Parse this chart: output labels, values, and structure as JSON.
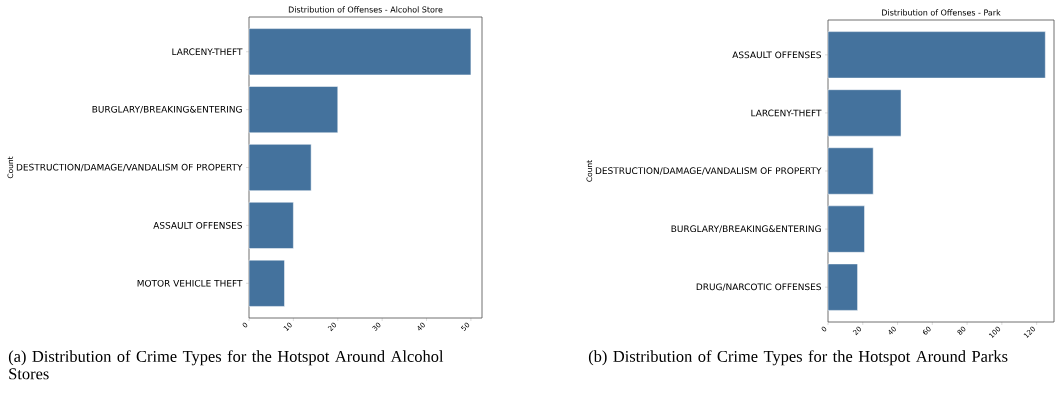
{
  "chart_data": [
    {
      "type": "bar",
      "orientation": "horizontal",
      "title": "Distribution of Offenses - Alcohol Store",
      "ylabel": "Count",
      "categories": [
        "LARCENY-THEFT",
        "BURGLARY/BREAKING&ENTERING",
        "DESTRUCTION/DAMAGE/VANDALISM OF PROPERTY",
        "ASSAULT OFFENSES",
        "MOTOR VEHICLE THEFT"
      ],
      "values": [
        50,
        20,
        14,
        10,
        8
      ],
      "color": "#44729d",
      "xlim": [
        0,
        52.5
      ],
      "xticks": [
        0,
        10,
        20,
        30,
        40,
        50
      ],
      "annotations": [
        "(a) Distribution of Crime Types for the Hotspot Around Alcohol Stores"
      ]
    },
    {
      "type": "bar",
      "orientation": "horizontal",
      "title": "Distribution of Offenses - Park",
      "ylabel": "Count",
      "categories": [
        "ASSAULT OFFENSES",
        "LARCENY-THEFT",
        "DESTRUCTION/DAMAGE/VANDALISM OF PROPERTY",
        "BURGLARY/BREAKING&ENTERING",
        "DRUG/NARCOTIC OFFENSES"
      ],
      "values": [
        125,
        42,
        26,
        21,
        17
      ],
      "color": "#44729d",
      "xlim": [
        0,
        130
      ],
      "xticks": [
        0,
        20,
        40,
        60,
        80,
        100,
        120
      ],
      "annotations": [
        "(b) Distribution of Crime Types for the Hotspot Around Parks"
      ]
    }
  ]
}
